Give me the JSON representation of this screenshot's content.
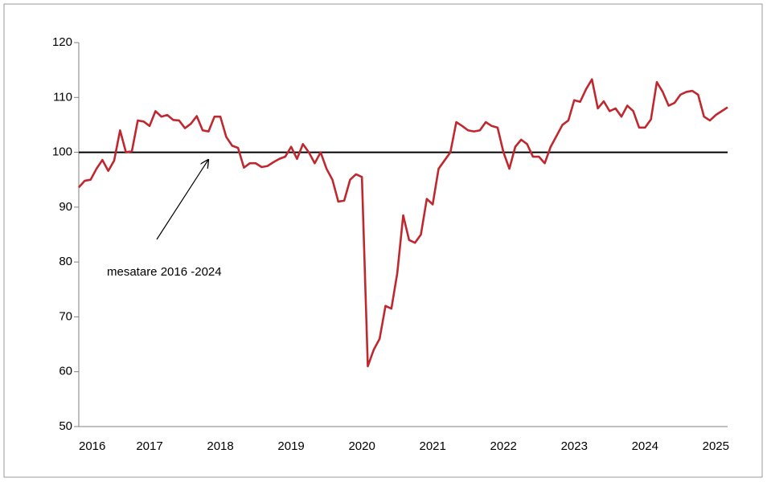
{
  "chart_data": {
    "type": "line",
    "annotation": "mesatare 2016 -2024",
    "reference_line": 100,
    "categories": [
      "2016",
      null,
      null,
      null,
      null,
      null,
      null,
      null,
      null,
      null,
      null,
      null,
      "2017",
      null,
      null,
      null,
      null,
      null,
      null,
      null,
      null,
      null,
      null,
      null,
      "2018",
      null,
      null,
      null,
      null,
      null,
      null,
      null,
      null,
      null,
      null,
      null,
      "2019",
      null,
      null,
      null,
      null,
      null,
      null,
      null,
      null,
      null,
      null,
      null,
      "2020",
      null,
      null,
      null,
      null,
      null,
      null,
      null,
      null,
      null,
      null,
      null,
      "2021",
      null,
      null,
      null,
      null,
      null,
      null,
      null,
      null,
      null,
      null,
      null,
      "2022",
      null,
      null,
      null,
      null,
      null,
      null,
      null,
      null,
      null,
      null,
      null,
      "2023",
      null,
      null,
      null,
      null,
      null,
      null,
      null,
      null,
      null,
      null,
      null,
      "2024",
      null,
      null,
      null,
      null,
      null,
      null,
      null,
      null,
      null,
      null,
      null,
      "2025",
      null,
      null
    ],
    "series": [
      {
        "color": "#c0282f",
        "values": [
          93.6,
          94.8,
          95.0,
          97.0,
          98.6,
          96.6,
          98.5,
          104.0,
          100.0,
          100.2,
          105.8,
          105.6,
          104.8,
          107.5,
          106.5,
          106.8,
          105.9,
          105.8,
          104.4,
          105.2,
          106.6,
          104.0,
          103.8,
          106.5,
          106.5,
          102.8,
          101.2,
          100.8,
          97.2,
          98.0,
          98.0,
          97.3,
          97.5,
          98.2,
          98.8,
          99.2,
          101.0,
          98.8,
          101.5,
          100.0,
          98.0,
          100.0,
          97.0,
          95.0,
          91.0,
          91.2,
          95.0,
          96.0,
          95.5,
          61.0,
          64.0,
          66.0,
          72.0,
          71.5,
          78.0,
          88.5,
          84.0,
          83.5,
          85.0,
          91.5,
          90.5,
          97.0,
          98.5,
          100.0,
          105.5,
          104.8,
          104.0,
          103.8,
          104.0,
          105.5,
          104.8,
          104.5,
          100.0,
          97.0,
          101.0,
          102.3,
          101.5,
          99.2,
          99.2,
          98.0,
          101.0,
          103.0,
          105.0,
          105.8,
          109.5,
          109.2,
          111.5,
          113.3,
          108.0,
          109.3,
          107.5,
          108.0,
          106.5,
          108.5,
          107.5,
          104.5,
          104.5,
          106.0,
          112.8,
          111.0,
          108.5,
          109.0,
          110.5,
          111.0,
          111.2,
          110.5,
          106.5,
          105.8,
          106.8,
          107.5,
          108.2
        ]
      }
    ],
    "ylim": [
      50,
      120
    ],
    "yticks": [
      50,
      60,
      70,
      80,
      90,
      100,
      110,
      120
    ]
  }
}
